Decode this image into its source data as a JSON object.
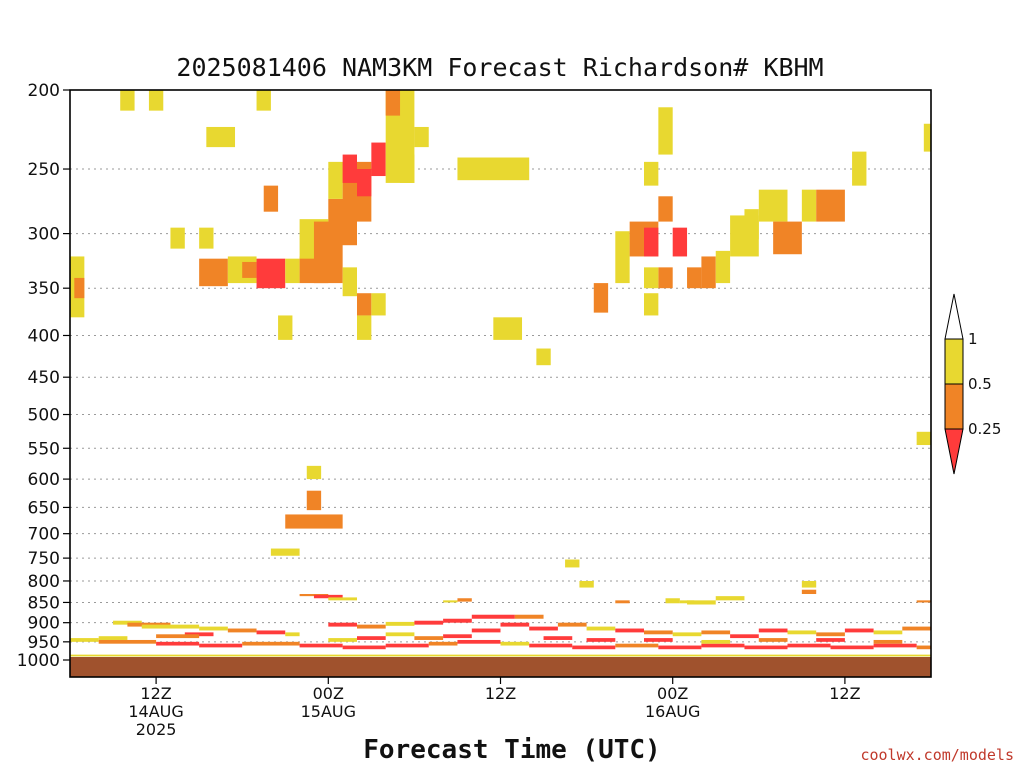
{
  "chart_data": {
    "type": "heatmap",
    "title": "2025081406 NAM3KM Forecast Richardson# KBHM",
    "xlabel": "Forecast Time (UTC)",
    "credit": "coolwx.com/models",
    "y_scale": "log-pressure",
    "y_range": [
      1000,
      200
    ],
    "y_ticks": [
      200,
      250,
      300,
      350,
      400,
      450,
      500,
      550,
      600,
      650,
      700,
      750,
      800,
      850,
      900,
      950,
      1000
    ],
    "grid_levels": [
      250,
      300,
      350,
      400,
      450,
      500,
      550,
      600,
      650,
      700,
      750,
      800,
      850,
      900,
      950
    ],
    "x_range": [
      0,
      60
    ],
    "x_ticks": [
      {
        "hour": 6,
        "lines": [
          "12Z",
          "14AUG",
          "2025"
        ]
      },
      {
        "hour": 18,
        "lines": [
          "00Z",
          "15AUG"
        ]
      },
      {
        "hour": 30,
        "lines": [
          "12Z"
        ]
      },
      {
        "hour": 42,
        "lines": [
          "00Z",
          "16AUG"
        ]
      },
      {
        "hour": 54,
        "lines": [
          "12Z"
        ]
      }
    ],
    "colorbar": {
      "levels": [
        "1",
        "0.5",
        "0.25"
      ],
      "colors": {
        "ge_0.5": "#e8d830",
        "0.25_0.5": "#f08426",
        "lt_0.25": "#ff3b3b",
        "ground": "#a0522d"
      }
    },
    "cells": [
      [
        0,
        1,
        320,
        380,
        "y"
      ],
      [
        0.3,
        1,
        340,
        360,
        "o"
      ],
      [
        3.5,
        4.5,
        200,
        212,
        "y"
      ],
      [
        5.5,
        6.5,
        200,
        212,
        "y"
      ],
      [
        9.5,
        11.5,
        222,
        235,
        "y"
      ],
      [
        7,
        8,
        295,
        313,
        "y"
      ],
      [
        9,
        10,
        295,
        313,
        "y"
      ],
      [
        9,
        11,
        322,
        348,
        "o"
      ],
      [
        11,
        13,
        320,
        345,
        "y"
      ],
      [
        12,
        13,
        325,
        340,
        "o"
      ],
      [
        13,
        15,
        322,
        350,
        "r"
      ],
      [
        15,
        16,
        322,
        345,
        "y"
      ],
      [
        16,
        18,
        320,
        345,
        "o"
      ],
      [
        13,
        14,
        200,
        212,
        "y"
      ],
      [
        13.5,
        14.5,
        262,
        282,
        "o"
      ],
      [
        14.5,
        15.5,
        378,
        405,
        "y"
      ],
      [
        16,
        18,
        288,
        322,
        "y"
      ],
      [
        17,
        19,
        290,
        345,
        "o"
      ],
      [
        18,
        20,
        272,
        310,
        "o"
      ],
      [
        18,
        19,
        245,
        272,
        "y"
      ],
      [
        19,
        21,
        245,
        290,
        "o"
      ],
      [
        19,
        20,
        240,
        260,
        "r"
      ],
      [
        20,
        21,
        250,
        270,
        "r"
      ],
      [
        21,
        22,
        232,
        255,
        "r"
      ],
      [
        19,
        20,
        330,
        358,
        "y"
      ],
      [
        20,
        21,
        355,
        378,
        "o"
      ],
      [
        21,
        22,
        355,
        378,
        "y"
      ],
      [
        20,
        21,
        378,
        405,
        "y"
      ],
      [
        22,
        24,
        200,
        260,
        "y"
      ],
      [
        22,
        23,
        200,
        215,
        "o"
      ],
      [
        23,
        24,
        240,
        260,
        "y"
      ],
      [
        24,
        25,
        222,
        235,
        "y"
      ],
      [
        27,
        30,
        242,
        258,
        "y"
      ],
      [
        30,
        32,
        242,
        258,
        "y"
      ],
      [
        29.5,
        31.5,
        380,
        405,
        "y"
      ],
      [
        32.5,
        33.5,
        415,
        435,
        "y"
      ],
      [
        36.5,
        37.5,
        345,
        375,
        "o"
      ],
      [
        38,
        39,
        298,
        345,
        "y"
      ],
      [
        39,
        41,
        290,
        320,
        "o"
      ],
      [
        40,
        41,
        295,
        320,
        "r"
      ],
      [
        42,
        43,
        295,
        320,
        "r"
      ],
      [
        41,
        42,
        330,
        350,
        "o"
      ],
      [
        40,
        41,
        330,
        350,
        "y"
      ],
      [
        41,
        42,
        210,
        240,
        "y"
      ],
      [
        41,
        42,
        270,
        290,
        "o"
      ],
      [
        40,
        41,
        245,
        262,
        "y"
      ],
      [
        40,
        41,
        355,
        378,
        "y"
      ],
      [
        43,
        44,
        330,
        350,
        "o"
      ],
      [
        44,
        45,
        320,
        350,
        "o"
      ],
      [
        45,
        46,
        315,
        345,
        "y"
      ],
      [
        46,
        48,
        285,
        320,
        "y"
      ],
      [
        47,
        48,
        280,
        305,
        "y"
      ],
      [
        48,
        50,
        265,
        290,
        "y"
      ],
      [
        49,
        51,
        290,
        318,
        "o"
      ],
      [
        51,
        52,
        265,
        290,
        "y"
      ],
      [
        52,
        54,
        265,
        290,
        "o"
      ],
      [
        54.5,
        55.5,
        238,
        262,
        "y"
      ],
      [
        59.5,
        60,
        220,
        238,
        "y"
      ],
      [
        59,
        60,
        525,
        545,
        "y"
      ],
      [
        16.5,
        17.5,
        620,
        655,
        "o"
      ],
      [
        15,
        19,
        663,
        690,
        "o"
      ],
      [
        16.5,
        17.5,
        578,
        600,
        "y"
      ],
      [
        14,
        16,
        730,
        745,
        "y"
      ],
      [
        34.5,
        35.5,
        753,
        770,
        "y"
      ],
      [
        35.5,
        36.5,
        800,
        815,
        "y"
      ],
      [
        51,
        52,
        800,
        815,
        "y"
      ],
      [
        51,
        52,
        820,
        830,
        "o"
      ],
      [
        16,
        18,
        830,
        835,
        "o"
      ],
      [
        17,
        19,
        832,
        840,
        "r"
      ],
      [
        18,
        20,
        838,
        845,
        "y"
      ],
      [
        27,
        28,
        840,
        848,
        "o"
      ],
      [
        26,
        27,
        845,
        850,
        "y"
      ],
      [
        41.5,
        42.5,
        840,
        852,
        "y"
      ],
      [
        42.5,
        43.5,
        845,
        852,
        "y"
      ],
      [
        38,
        39,
        845,
        852,
        "o"
      ],
      [
        43,
        45,
        845,
        855,
        "y"
      ],
      [
        45,
        47,
        835,
        845,
        "y"
      ],
      [
        59,
        60,
        845,
        850,
        "o"
      ],
      [
        3,
        5,
        895,
        905,
        "y"
      ],
      [
        4,
        7,
        900,
        910,
        "o"
      ],
      [
        5,
        9,
        905,
        915,
        "y"
      ],
      [
        9,
        11,
        910,
        920,
        "y"
      ],
      [
        11,
        13,
        915,
        925,
        "o"
      ],
      [
        13,
        15,
        920,
        930,
        "r"
      ],
      [
        15,
        16,
        925,
        935,
        "y"
      ],
      [
        8,
        10,
        925,
        935,
        "r"
      ],
      [
        6,
        9,
        930,
        940,
        "o"
      ],
      [
        2,
        4,
        935,
        945,
        "y"
      ],
      [
        0,
        2,
        940,
        950,
        "y"
      ],
      [
        2,
        6,
        945,
        955,
        "o"
      ],
      [
        6,
        9,
        950,
        960,
        "r"
      ],
      [
        9,
        12,
        955,
        965,
        "r"
      ],
      [
        12,
        16,
        950,
        960,
        "o"
      ],
      [
        16,
        19,
        955,
        965,
        "r"
      ],
      [
        19,
        22,
        960,
        970,
        "r"
      ],
      [
        22,
        25,
        955,
        965,
        "r"
      ],
      [
        25,
        27,
        950,
        960,
        "o"
      ],
      [
        27,
        30,
        945,
        955,
        "r"
      ],
      [
        30,
        32,
        950,
        960,
        "y"
      ],
      [
        32,
        35,
        955,
        965,
        "r"
      ],
      [
        35,
        38,
        960,
        970,
        "r"
      ],
      [
        38,
        41,
        955,
        965,
        "o"
      ],
      [
        41,
        44,
        960,
        970,
        "r"
      ],
      [
        44,
        47,
        955,
        965,
        "r"
      ],
      [
        47,
        50,
        960,
        970,
        "r"
      ],
      [
        50,
        53,
        955,
        965,
        "r"
      ],
      [
        53,
        56,
        960,
        970,
        "r"
      ],
      [
        56,
        59,
        955,
        965,
        "r"
      ],
      [
        59,
        60,
        960,
        970,
        "o"
      ],
      [
        18,
        20,
        900,
        910,
        "r"
      ],
      [
        20,
        22,
        905,
        915,
        "o"
      ],
      [
        22,
        24,
        898,
        908,
        "y"
      ],
      [
        24,
        26,
        895,
        905,
        "r"
      ],
      [
        26,
        28,
        890,
        900,
        "r"
      ],
      [
        28,
        31,
        880,
        890,
        "r"
      ],
      [
        31,
        33,
        880,
        890,
        "o"
      ],
      [
        30,
        32,
        900,
        910,
        "r"
      ],
      [
        32,
        34,
        910,
        920,
        "r"
      ],
      [
        34,
        36,
        900,
        910,
        "o"
      ],
      [
        36,
        38,
        910,
        920,
        "y"
      ],
      [
        38,
        40,
        915,
        925,
        "r"
      ],
      [
        40,
        42,
        920,
        930,
        "o"
      ],
      [
        42,
        44,
        925,
        935,
        "y"
      ],
      [
        44,
        46,
        920,
        930,
        "o"
      ],
      [
        46,
        48,
        930,
        940,
        "r"
      ],
      [
        48,
        50,
        915,
        925,
        "r"
      ],
      [
        50,
        52,
        920,
        930,
        "y"
      ],
      [
        52,
        54,
        925,
        935,
        "o"
      ],
      [
        54,
        56,
        915,
        925,
        "r"
      ],
      [
        56,
        58,
        920,
        930,
        "y"
      ],
      [
        58,
        60,
        910,
        920,
        "o"
      ],
      [
        28,
        30,
        915,
        925,
        "r"
      ],
      [
        26,
        28,
        930,
        940,
        "r"
      ],
      [
        24,
        26,
        935,
        945,
        "o"
      ],
      [
        22,
        24,
        925,
        935,
        "y"
      ],
      [
        20,
        22,
        935,
        945,
        "r"
      ],
      [
        18,
        20,
        940,
        950,
        "y"
      ],
      [
        33,
        35,
        935,
        945,
        "r"
      ],
      [
        36,
        38,
        940,
        950,
        "r"
      ],
      [
        40,
        42,
        940,
        950,
        "r"
      ],
      [
        44,
        46,
        945,
        955,
        "y"
      ],
      [
        48,
        50,
        940,
        950,
        "o"
      ],
      [
        52,
        54,
        940,
        950,
        "r"
      ],
      [
        56,
        58,
        945,
        955,
        "o"
      ],
      [
        0,
        60,
        985,
        990,
        "y"
      ]
    ]
  }
}
